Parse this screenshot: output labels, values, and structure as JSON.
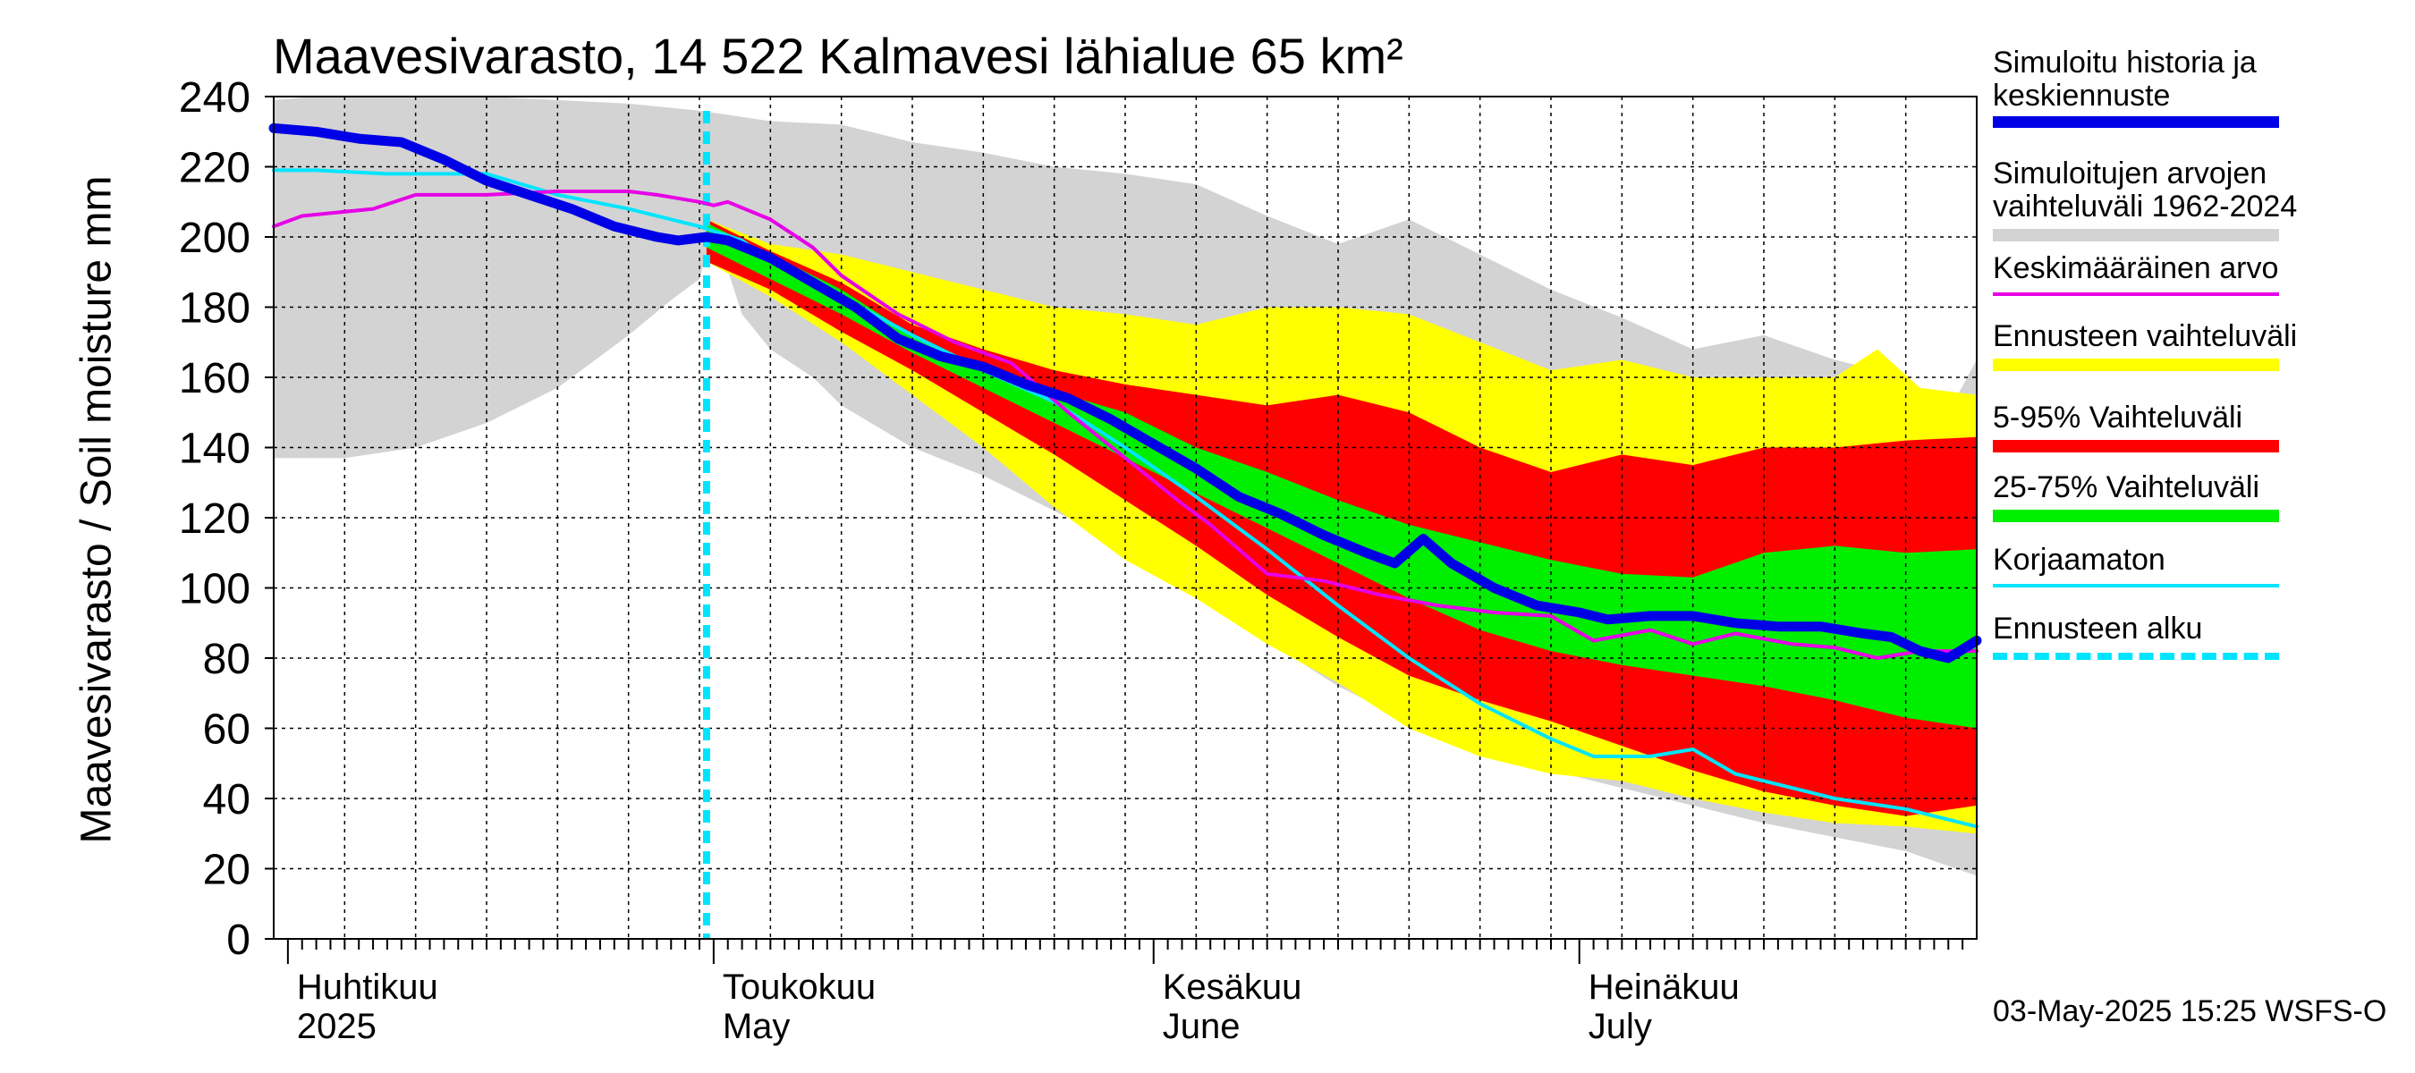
{
  "title": "Maavesivarasto, 14 522 Kalmavesi lähialue 65 km²",
  "y_axis_label": "Maavesivarasto / Soil moisture   mm",
  "footer": "03-May-2025 15:25 WSFS-O",
  "colors": {
    "history": "#0000e6",
    "range_hist": "#d3d3d3",
    "mean": "#e600e6",
    "forecast_range": "#ffff00",
    "p5_95": "#ff0000",
    "p25_75": "#00ee00",
    "uncorrected": "#00e5ff",
    "forecast_start": "#00e5ff"
  },
  "legend": [
    {
      "key": "history",
      "lines": [
        "Simuloitu historia ja",
        "keskiennuste"
      ],
      "style": "thick"
    },
    {
      "key": "range_hist",
      "lines": [
        "Simuloitujen arvojen",
        "vaihteluväli 1962-2024"
      ],
      "style": "band"
    },
    {
      "key": "mean",
      "lines": [
        "Keskimääräinen arvo"
      ],
      "style": "thin"
    },
    {
      "key": "forecast_range",
      "lines": [
        "Ennusteen vaihteluväli"
      ],
      "style": "band"
    },
    {
      "key": "p5_95",
      "lines": [
        "5-95% Vaihteluväli"
      ],
      "style": "band"
    },
    {
      "key": "p25_75",
      "lines": [
        "25-75% Vaihteluväli"
      ],
      "style": "band"
    },
    {
      "key": "uncorrected",
      "lines": [
        "Korjaamaton"
      ],
      "style": "thin"
    },
    {
      "key": "forecast_start",
      "lines": [
        "Ennusteen alku"
      ],
      "style": "dashed"
    }
  ],
  "months": [
    {
      "line1": "Huhtikuu",
      "line2": "2025",
      "day": 1
    },
    {
      "line1": "Toukokuu",
      "line2": "May",
      "day": 31
    },
    {
      "line1": "Kesäkuu",
      "line2": "June",
      "day": 62
    },
    {
      "line1": "Heinäkuu",
      "line2": "July",
      "day": 92
    }
  ],
  "chart_data": {
    "type": "area",
    "title": "Maavesivarasto, 14 522 Kalmavesi lähialue 65 km²",
    "xlabel": "",
    "ylabel": "Maavesivarasto / Soil moisture   mm",
    "x_unit": "days since 2025-03-31",
    "xlim": [
      0,
      120
    ],
    "ylim": [
      0,
      240
    ],
    "yticks": [
      0,
      20,
      40,
      60,
      80,
      100,
      120,
      140,
      160,
      180,
      200,
      220,
      240
    ],
    "forecast_start_day": 30.5,
    "bands": [
      {
        "name": "Simuloitujen arvojen vaihteluväli 1962-2024",
        "key": "range_hist",
        "upper": [
          [
            0,
            239
          ],
          [
            3,
            240
          ],
          [
            10,
            240
          ],
          [
            15,
            240
          ],
          [
            20,
            239
          ],
          [
            25,
            238
          ],
          [
            30,
            236
          ],
          [
            35,
            233
          ],
          [
            40,
            232
          ],
          [
            45,
            227
          ],
          [
            50,
            224
          ],
          [
            55,
            220
          ],
          [
            60,
            218
          ],
          [
            65,
            215
          ],
          [
            70,
            206
          ],
          [
            75,
            198
          ],
          [
            80,
            205
          ],
          [
            85,
            195
          ],
          [
            90,
            185
          ],
          [
            95,
            177
          ],
          [
            100,
            168
          ],
          [
            105,
            172
          ],
          [
            110,
            165
          ],
          [
            115,
            160
          ],
          [
            118,
            150
          ],
          [
            120,
            165
          ]
        ],
        "lower": [
          [
            0,
            137
          ],
          [
            5,
            137
          ],
          [
            10,
            140
          ],
          [
            15,
            147
          ],
          [
            20,
            157
          ],
          [
            25,
            172
          ],
          [
            28,
            182
          ],
          [
            30,
            188
          ],
          [
            31,
            203
          ],
          [
            33,
            178
          ],
          [
            35,
            168
          ],
          [
            38,
            160
          ],
          [
            40,
            152
          ],
          [
            45,
            140
          ],
          [
            50,
            132
          ],
          [
            55,
            122
          ],
          [
            60,
            112
          ],
          [
            65,
            100
          ],
          [
            70,
            85
          ],
          [
            75,
            72
          ],
          [
            80,
            62
          ],
          [
            85,
            55
          ],
          [
            90,
            48
          ],
          [
            95,
            43
          ],
          [
            100,
            38
          ],
          [
            105,
            33
          ],
          [
            110,
            29
          ],
          [
            115,
            25
          ],
          [
            120,
            18
          ]
        ]
      },
      {
        "name": "Ennusteen vaihteluväli",
        "key": "forecast_range",
        "upper": [
          [
            30.5,
            205
          ],
          [
            35,
            198
          ],
          [
            40,
            195
          ],
          [
            45,
            190
          ],
          [
            50,
            185
          ],
          [
            55,
            180
          ],
          [
            60,
            178
          ],
          [
            65,
            175
          ],
          [
            70,
            180
          ],
          [
            75,
            180
          ],
          [
            80,
            178
          ],
          [
            85,
            170
          ],
          [
            90,
            162
          ],
          [
            95,
            165
          ],
          [
            100,
            160
          ],
          [
            105,
            160
          ],
          [
            110,
            160
          ],
          [
            113,
            168
          ],
          [
            116,
            157
          ],
          [
            120,
            155
          ]
        ],
        "lower": [
          [
            30.5,
            193
          ],
          [
            35,
            183
          ],
          [
            40,
            170
          ],
          [
            45,
            155
          ],
          [
            50,
            140
          ],
          [
            55,
            123
          ],
          [
            60,
            108
          ],
          [
            65,
            97
          ],
          [
            70,
            84
          ],
          [
            75,
            73
          ],
          [
            80,
            60
          ],
          [
            85,
            52
          ],
          [
            90,
            47
          ],
          [
            95,
            45
          ],
          [
            100,
            40
          ],
          [
            105,
            36
          ],
          [
            110,
            33
          ],
          [
            115,
            32
          ],
          [
            120,
            30
          ]
        ]
      },
      {
        "name": "5-95% Vaihteluväli",
        "key": "p5_95",
        "upper": [
          [
            30.5,
            205
          ],
          [
            35,
            196
          ],
          [
            40,
            187
          ],
          [
            45,
            175
          ],
          [
            50,
            168
          ],
          [
            55,
            162
          ],
          [
            60,
            158
          ],
          [
            65,
            155
          ],
          [
            70,
            152
          ],
          [
            75,
            155
          ],
          [
            80,
            150
          ],
          [
            85,
            140
          ],
          [
            90,
            133
          ],
          [
            95,
            138
          ],
          [
            100,
            135
          ],
          [
            105,
            140
          ],
          [
            110,
            140
          ],
          [
            115,
            142
          ],
          [
            120,
            143
          ]
        ],
        "lower": [
          [
            30.5,
            193
          ],
          [
            35,
            185
          ],
          [
            40,
            173
          ],
          [
            45,
            162
          ],
          [
            50,
            150
          ],
          [
            55,
            138
          ],
          [
            60,
            125
          ],
          [
            65,
            112
          ],
          [
            70,
            98
          ],
          [
            75,
            86
          ],
          [
            80,
            75
          ],
          [
            85,
            68
          ],
          [
            90,
            62
          ],
          [
            95,
            55
          ],
          [
            100,
            48
          ],
          [
            105,
            42
          ],
          [
            110,
            38
          ],
          [
            115,
            35
          ],
          [
            120,
            38
          ]
        ]
      },
      {
        "name": "25-75% Vaihteluväli",
        "key": "p25_75",
        "upper": [
          [
            30.5,
            204
          ],
          [
            35,
            195
          ],
          [
            40,
            185
          ],
          [
            45,
            172
          ],
          [
            50,
            163
          ],
          [
            55,
            156
          ],
          [
            60,
            150
          ],
          [
            65,
            140
          ],
          [
            70,
            133
          ],
          [
            75,
            125
          ],
          [
            80,
            118
          ],
          [
            85,
            113
          ],
          [
            90,
            108
          ],
          [
            95,
            104
          ],
          [
            100,
            103
          ],
          [
            105,
            110
          ],
          [
            110,
            112
          ],
          [
            115,
            110
          ],
          [
            120,
            111
          ]
        ],
        "lower": [
          [
            30.5,
            197
          ],
          [
            35,
            188
          ],
          [
            40,
            178
          ],
          [
            45,
            167
          ],
          [
            50,
            157
          ],
          [
            55,
            147
          ],
          [
            60,
            137
          ],
          [
            65,
            127
          ],
          [
            70,
            117
          ],
          [
            75,
            107
          ],
          [
            80,
            97
          ],
          [
            85,
            88
          ],
          [
            90,
            82
          ],
          [
            95,
            78
          ],
          [
            100,
            75
          ],
          [
            105,
            72
          ],
          [
            110,
            68
          ],
          [
            115,
            63
          ],
          [
            120,
            60
          ]
        ]
      }
    ],
    "series": [
      {
        "name": "Korjaamaton",
        "key": "uncorrected",
        "width": 4,
        "points": [
          [
            0,
            219
          ],
          [
            3,
            219
          ],
          [
            8,
            218
          ],
          [
            15,
            218
          ],
          [
            20,
            212
          ],
          [
            25,
            208
          ],
          [
            30,
            203
          ],
          [
            33,
            199
          ],
          [
            35,
            193
          ],
          [
            40,
            183
          ],
          [
            45,
            172
          ],
          [
            50,
            162
          ],
          [
            55,
            153
          ],
          [
            60,
            140
          ],
          [
            65,
            126
          ],
          [
            70,
            111
          ],
          [
            75,
            95
          ],
          [
            80,
            80
          ],
          [
            85,
            67
          ],
          [
            90,
            57
          ],
          [
            93,
            52
          ],
          [
            97,
            52
          ],
          [
            100,
            54
          ],
          [
            103,
            47
          ],
          [
            107,
            43
          ],
          [
            110,
            40
          ],
          [
            115,
            37
          ],
          [
            120,
            32
          ]
        ]
      },
      {
        "name": "Keskimääräinen arvo",
        "key": "mean",
        "width": 4,
        "points": [
          [
            0,
            203
          ],
          [
            2,
            206
          ],
          [
            7,
            208
          ],
          [
            10,
            212
          ],
          [
            13,
            212
          ],
          [
            15,
            212
          ],
          [
            20,
            213
          ],
          [
            25,
            213
          ],
          [
            27,
            212
          ],
          [
            30,
            210
          ],
          [
            31,
            209
          ],
          [
            32,
            210
          ],
          [
            35,
            205
          ],
          [
            38,
            197
          ],
          [
            40,
            189
          ],
          [
            44,
            178
          ],
          [
            48,
            170
          ],
          [
            52,
            164
          ],
          [
            56,
            150
          ],
          [
            60,
            137
          ],
          [
            64,
            124
          ],
          [
            66,
            118
          ],
          [
            70,
            104
          ],
          [
            74,
            102
          ],
          [
            78,
            98
          ],
          [
            82,
            95
          ],
          [
            86,
            93
          ],
          [
            90,
            92
          ],
          [
            93,
            85
          ],
          [
            97,
            88
          ],
          [
            100,
            84
          ],
          [
            103,
            87
          ],
          [
            107,
            84
          ],
          [
            110,
            83
          ],
          [
            113,
            80
          ],
          [
            116,
            82
          ],
          [
            120,
            82
          ]
        ]
      },
      {
        "name": "Simuloitu historia ja keskiennuste",
        "key": "history",
        "width": 11,
        "points": [
          [
            0,
            231
          ],
          [
            3,
            230
          ],
          [
            6,
            228
          ],
          [
            9,
            227
          ],
          [
            12,
            222
          ],
          [
            15,
            216
          ],
          [
            18,
            212
          ],
          [
            21,
            208
          ],
          [
            24,
            203
          ],
          [
            27,
            200
          ],
          [
            28.5,
            199
          ],
          [
            30.5,
            200
          ],
          [
            32,
            199
          ],
          [
            35,
            194
          ],
          [
            38,
            187
          ],
          [
            41,
            180
          ],
          [
            44,
            171
          ],
          [
            47,
            166
          ],
          [
            50,
            163
          ],
          [
            53,
            158
          ],
          [
            56,
            154
          ],
          [
            59,
            148
          ],
          [
            62,
            141
          ],
          [
            65,
            134
          ],
          [
            68,
            126
          ],
          [
            71,
            121
          ],
          [
            74,
            115
          ],
          [
            77,
            110
          ],
          [
            79,
            107
          ],
          [
            81,
            114
          ],
          [
            83,
            107
          ],
          [
            86,
            100
          ],
          [
            89,
            95
          ],
          [
            92,
            93
          ],
          [
            94,
            91
          ],
          [
            97,
            92
          ],
          [
            100,
            92
          ],
          [
            103,
            90
          ],
          [
            106,
            89
          ],
          [
            109,
            89
          ],
          [
            112,
            87
          ],
          [
            114,
            86
          ],
          [
            116,
            82
          ],
          [
            118,
            80
          ],
          [
            120,
            85
          ]
        ]
      }
    ]
  }
}
